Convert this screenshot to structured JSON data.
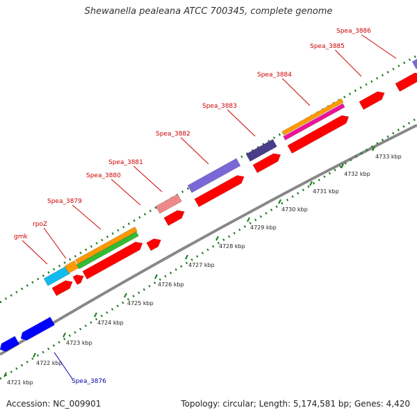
{
  "title": "Shewanella pealeana ATCC 700345, complete genome",
  "accession": "Accession: NC_009901",
  "topology": "Topology: circular; Length: 5,174,581 bp; Genes: 4,420",
  "colors": {
    "forward_cds": "#ff0000",
    "reverse_cds": "#0000ff",
    "backbone": "#888888",
    "ticks": "#1a7a1a",
    "label_forward": "#cc0000",
    "label_reverse": "#0000aa",
    "track_purple": "#7b68d8",
    "track_darkpurple": "#483d8b",
    "track_orange": "#ff9900",
    "track_green": "#33bb33",
    "track_magenta": "#ee1199",
    "track_cyan": "#11bbee",
    "track_pink": "#ee8888"
  },
  "scale": {
    "unit": "kbp",
    "ticks": [
      "4721 kbp",
      "4722 kbp",
      "4723 kbp",
      "4724 kbp",
      "4725 kbp",
      "4726 kbp",
      "4727 kbp",
      "4728 kbp",
      "4729 kbp",
      "4730 kbp",
      "4731 kbp",
      "4732 kbp",
      "4733 kbp"
    ]
  },
  "gene_labels_forward": [
    "gmk",
    "rpoZ",
    "Spea_3879",
    "Spea_3880",
    "Spea_3881",
    "Spea_3882",
    "Spea_3883",
    "Spea_3884",
    "Spea_3885",
    "Spea_3886"
  ],
  "gene_labels_reverse": [
    "Spea_3876"
  ]
}
